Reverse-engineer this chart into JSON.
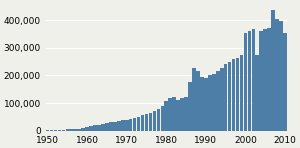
{
  "years": [
    1950,
    1951,
    1952,
    1953,
    1954,
    1955,
    1956,
    1957,
    1958,
    1959,
    1960,
    1961,
    1962,
    1963,
    1964,
    1965,
    1966,
    1967,
    1968,
    1969,
    1970,
    1971,
    1972,
    1973,
    1974,
    1975,
    1976,
    1977,
    1978,
    1979,
    1980,
    1981,
    1982,
    1983,
    1984,
    1985,
    1986,
    1987,
    1988,
    1989,
    1990,
    1991,
    1992,
    1993,
    1994,
    1995,
    1996,
    1997,
    1998,
    1999,
    2000,
    2001,
    2002,
    2003,
    2004,
    2005,
    2006,
    2007,
    2008,
    2009,
    2010
  ],
  "values": [
    1500,
    2000,
    2500,
    3000,
    4000,
    4500,
    5000,
    6000,
    7500,
    9000,
    12000,
    16000,
    20000,
    22000,
    25000,
    28000,
    30000,
    33000,
    36000,
    38000,
    40000,
    42000,
    45000,
    50000,
    55000,
    60000,
    65000,
    72000,
    80000,
    90000,
    108000,
    118000,
    122000,
    112000,
    118000,
    122000,
    175000,
    225000,
    215000,
    195000,
    190000,
    200000,
    205000,
    215000,
    228000,
    242000,
    248000,
    258000,
    262000,
    272000,
    355000,
    362000,
    368000,
    272000,
    362000,
    368000,
    372000,
    435000,
    405000,
    395000,
    355000
  ],
  "bar_color": "#4d7ea8",
  "bg_color": "#f0f0eb",
  "grid_color": "#ffffff",
  "xlim": [
    1949.5,
    2010.5
  ],
  "ylim": [
    0,
    460000
  ],
  "yticks": [
    0,
    100000,
    200000,
    300000,
    400000
  ],
  "xticks": [
    1950,
    1960,
    1970,
    1980,
    1990,
    2000,
    2010
  ],
  "tick_fontsize": 6.5,
  "bar_width": 0.92
}
